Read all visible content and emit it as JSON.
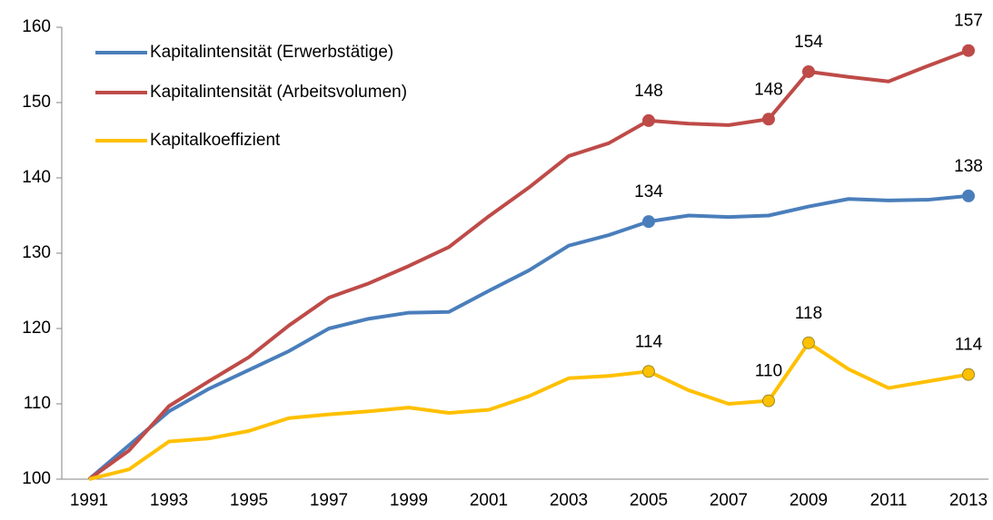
{
  "chart_data": {
    "type": "line",
    "categories": [
      "1991",
      null,
      "1993",
      null,
      "1995",
      null,
      "1997",
      null,
      "1999",
      null,
      "2001",
      null,
      "2003",
      null,
      "2005",
      null,
      "2007",
      null,
      "2009",
      null,
      "2011",
      null,
      "2013"
    ],
    "series": [
      {
        "name": "Kapitalintensität (Erwerbstätige)",
        "color": "#4a7ebb",
        "values": [
          100,
          104.5,
          109,
          112,
          114.5,
          117,
          120,
          121.3,
          122.1,
          122.2,
          125,
          127.7,
          131,
          132.4,
          134.2,
          135,
          134.8,
          135,
          136.2,
          137.2,
          137,
          137.1,
          137.6
        ],
        "value_labels": [
          null,
          null,
          null,
          null,
          null,
          null,
          null,
          null,
          null,
          null,
          null,
          null,
          null,
          null,
          "134",
          null,
          null,
          null,
          null,
          null,
          null,
          null,
          "138"
        ]
      },
      {
        "name": "Kapitalintensität (Arbeitsvolumen)",
        "color": "#be4b48",
        "values": [
          100,
          103.8,
          109.7,
          113,
          116.2,
          120.4,
          124.1,
          126,
          128.3,
          130.8,
          134.9,
          138.7,
          142.9,
          144.6,
          147.6,
          147.2,
          147,
          147.8,
          154.1,
          153.4,
          152.8,
          154.9,
          156.9
        ],
        "value_labels": [
          null,
          null,
          null,
          null,
          null,
          null,
          null,
          null,
          null,
          null,
          null,
          null,
          null,
          null,
          "148",
          null,
          null,
          "148",
          "154",
          null,
          null,
          null,
          "157"
        ]
      },
      {
        "name": "Kapitalkoeffizient",
        "color": "#ffc000",
        "values": [
          100,
          101.3,
          105,
          105.4,
          106.4,
          108.1,
          108.6,
          109,
          109.5,
          108.8,
          109.2,
          111,
          113.4,
          113.7,
          114.3,
          111.8,
          110,
          110.4,
          118.1,
          114.6,
          112.1,
          113,
          113.9
        ],
        "value_labels": [
          null,
          null,
          null,
          null,
          null,
          null,
          null,
          null,
          null,
          null,
          null,
          null,
          null,
          null,
          "114",
          null,
          null,
          "110",
          "118",
          null,
          null,
          null,
          "114"
        ]
      }
    ],
    "ylim": [
      100,
      160
    ],
    "yticks": [
      100,
      110,
      120,
      130,
      140,
      150,
      160
    ],
    "grid": false,
    "legend": "upper left"
  }
}
